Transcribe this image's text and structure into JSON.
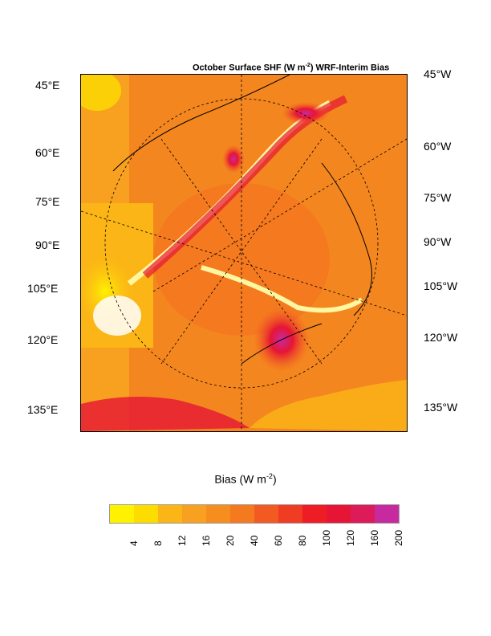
{
  "title": {
    "prefix": "October Surface SHF (W m",
    "sup": "-2",
    "suffix": ") WRF-Interim Bias"
  },
  "left_labels": [
    "45°E",
    "60°E",
    "75°E",
    "90°E",
    "105°E",
    "120°E",
    "135°E"
  ],
  "right_labels": [
    "45°W",
    "60°W",
    "75°W",
    "90°W",
    "105°W",
    "120°W",
    "135°W"
  ],
  "colorbar": {
    "title_prefix": "Bias (W m",
    "title_sup": "-2",
    "title_suffix": ")",
    "labels": [
      "4",
      "8",
      "12",
      "16",
      "20",
      "40",
      "60",
      "80",
      "100",
      "120",
      "160",
      "200"
    ],
    "colors": [
      "#fff200",
      "#fddc00",
      "#fbb516",
      "#f8a020",
      "#f68d1f",
      "#f4791f",
      "#f25a22",
      "#f03c23",
      "#ee1c25",
      "#e61535",
      "#dd1a5a",
      "#c72a9e"
    ]
  }
}
